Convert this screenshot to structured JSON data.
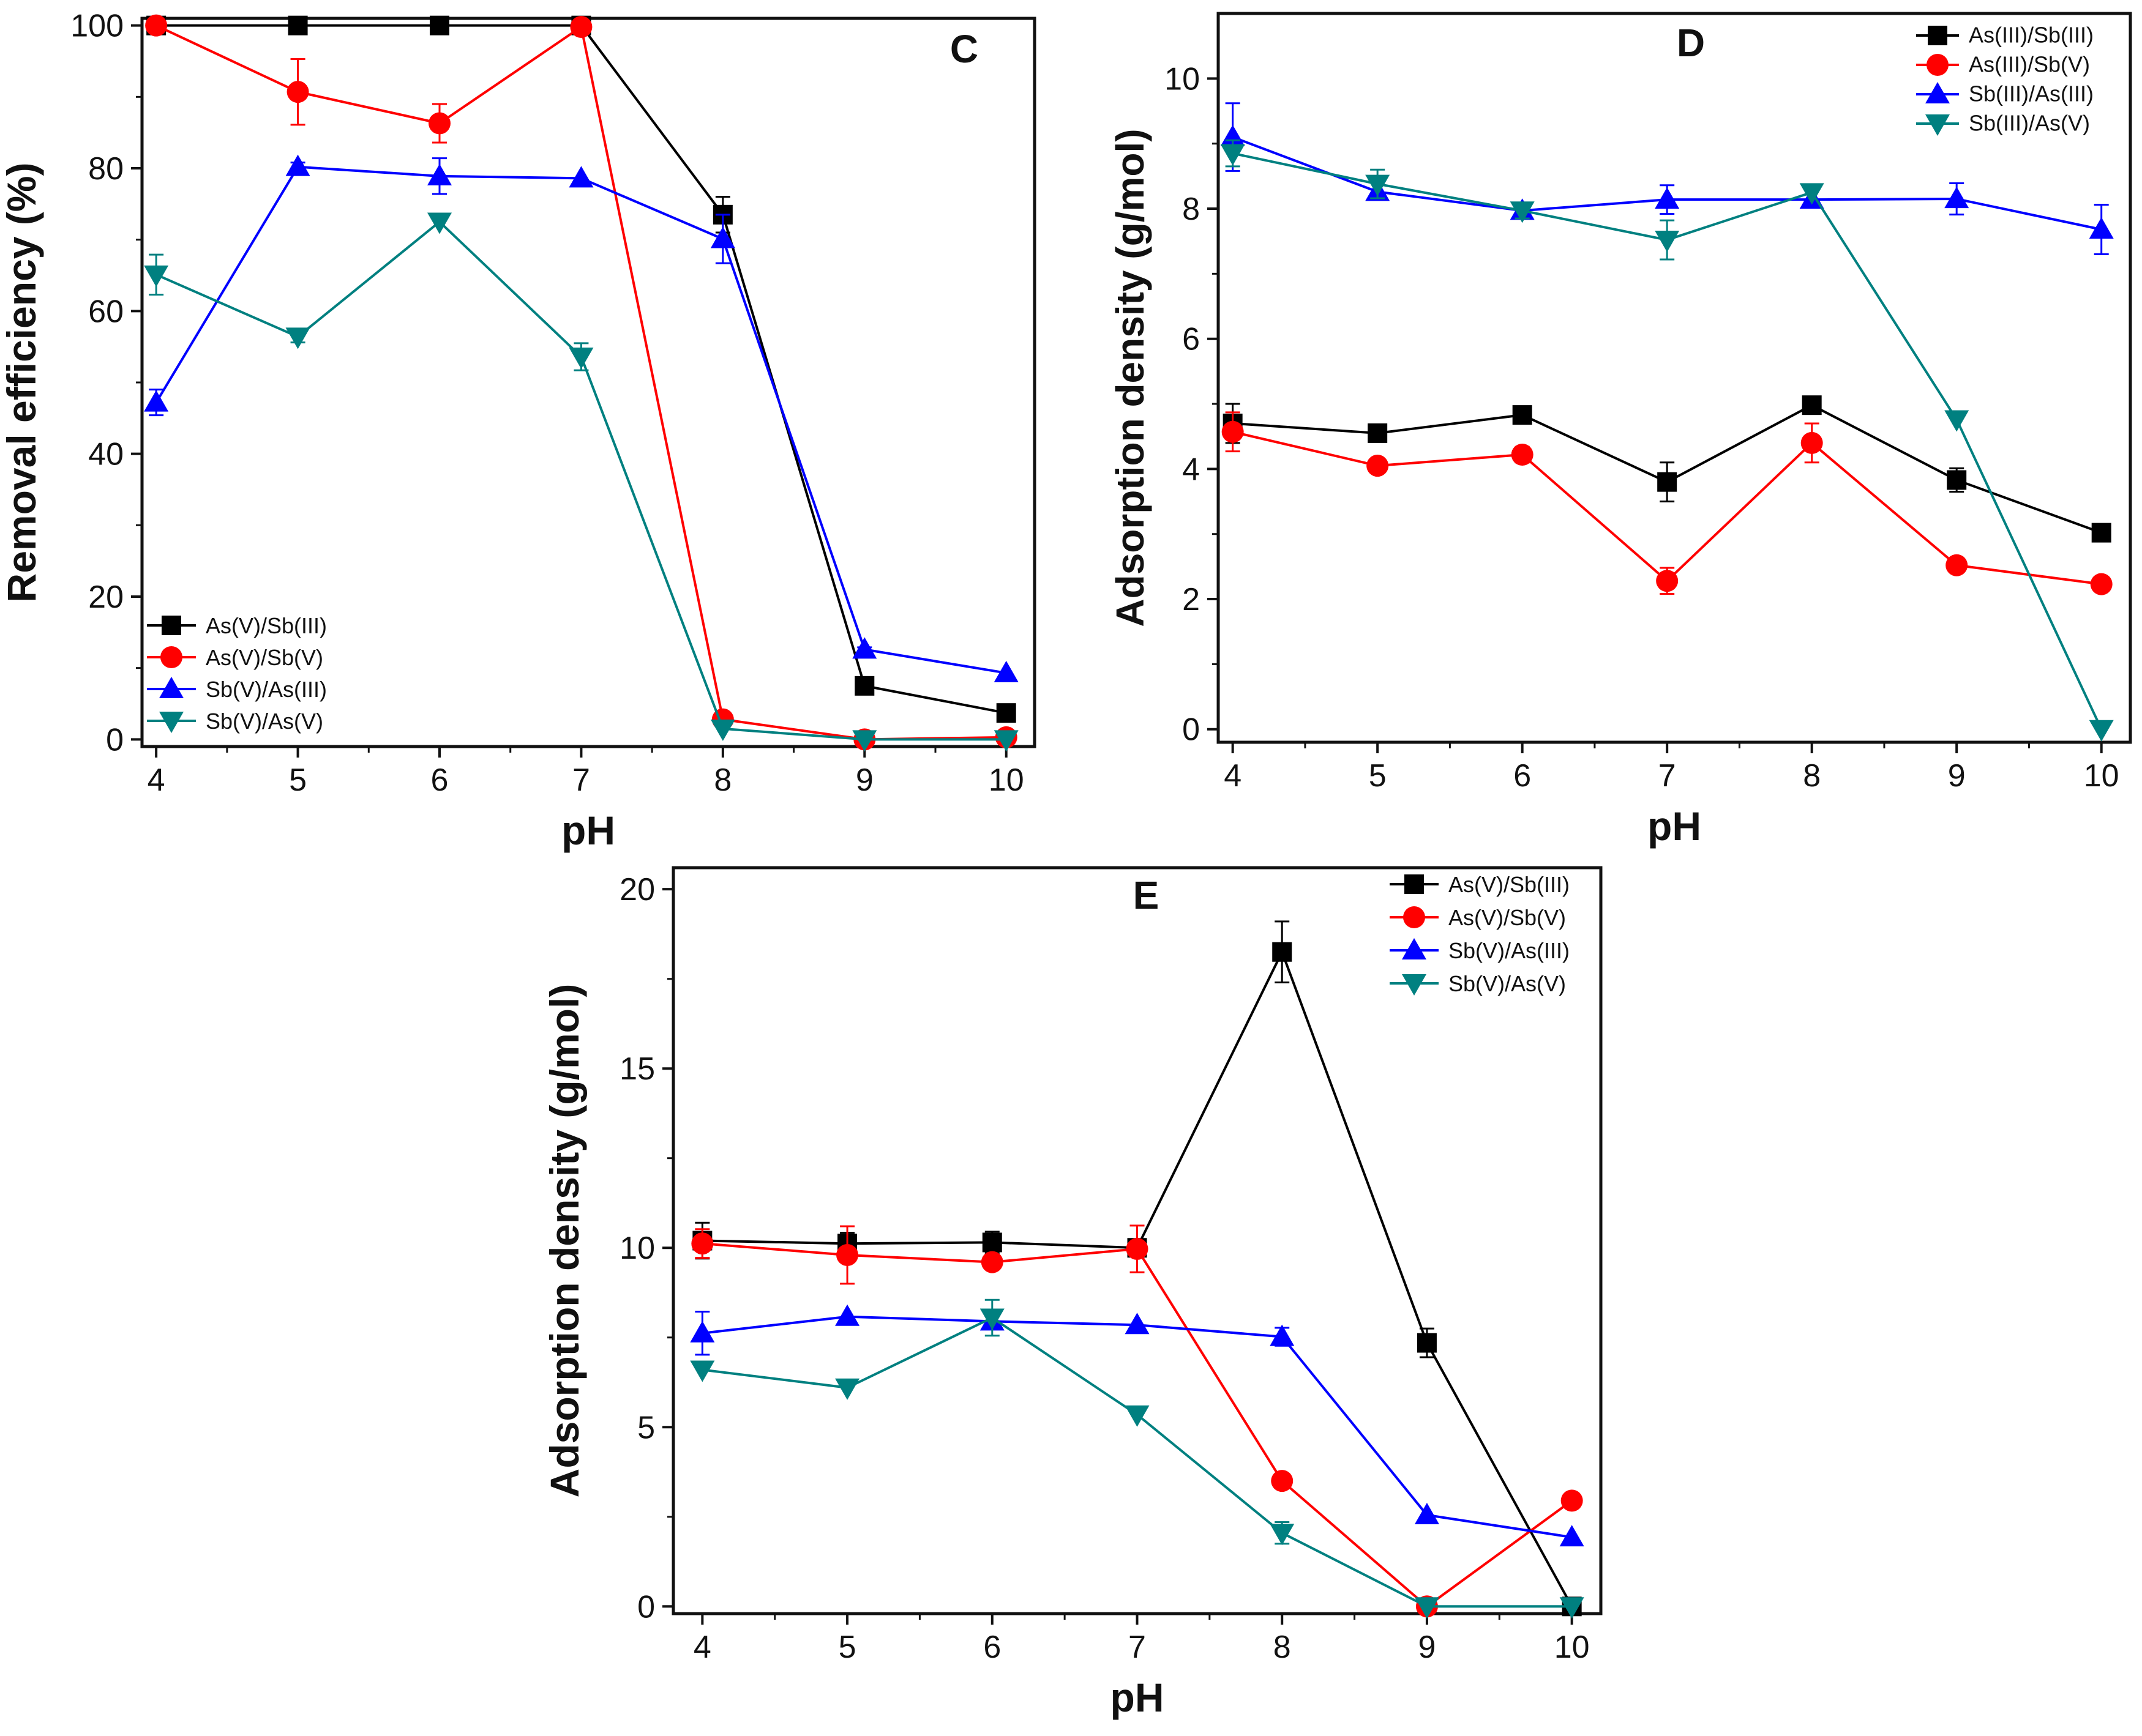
{
  "colors": {
    "black": "#000000",
    "red": "#ff0000",
    "blue": "#0000ff",
    "teal": "#008080",
    "axis": "#111111"
  },
  "chart_data": [
    {
      "type": "line",
      "panel": "C",
      "xlabel": "pH",
      "ylabel": "Removal efficiency (%)",
      "xlim": [
        3.9,
        10.2
      ],
      "ylim": [
        -1,
        101
      ],
      "x": [
        4,
        5,
        6,
        7,
        8,
        9,
        10
      ],
      "xticks": [
        "4",
        "5",
        "6",
        "7",
        "8",
        "9",
        "10"
      ],
      "yticks": [
        0,
        20,
        40,
        60,
        80,
        100
      ],
      "legend_position": "bottom-left",
      "series": [
        {
          "name": "As(V)/Sb(III)",
          "color": "black",
          "marker": "square",
          "values": [
            100,
            100,
            100,
            100,
            73.5,
            7.5,
            3.7
          ],
          "errors": [
            0,
            0,
            0,
            0,
            2.5,
            0.5,
            0.5
          ]
        },
        {
          "name": "As(V)/Sb(V)",
          "color": "red",
          "marker": "circle",
          "values": [
            100,
            90.7,
            86.3,
            99.8,
            2.8,
            0,
            0.3
          ],
          "errors": [
            0,
            4.6,
            2.7,
            0,
            0.5,
            0,
            0
          ]
        },
        {
          "name": "Sb(V)/As(III)",
          "color": "blue",
          "marker": "triangle-up",
          "values": [
            47.2,
            80.2,
            78.9,
            78.6,
            70.1,
            12.6,
            9.3
          ],
          "errors": [
            1.8,
            0.6,
            2.5,
            0,
            3.4,
            0.3,
            0
          ]
        },
        {
          "name": "Sb(V)/As(V)",
          "color": "teal",
          "marker": "triangle-down",
          "values": [
            65.1,
            56.4,
            72.5,
            53.6,
            1.5,
            0,
            0
          ],
          "errors": [
            2.8,
            0.8,
            0,
            1.9,
            0,
            0,
            0
          ]
        }
      ]
    },
    {
      "type": "line",
      "panel": "D",
      "xlabel": "pH",
      "ylabel": "Adsorption density (g/mol)",
      "xlim": [
        3.9,
        10.2
      ],
      "ylim": [
        -0.2,
        11
      ],
      "x": [
        4,
        5,
        6,
        7,
        8,
        9,
        10
      ],
      "xticks": [
        "4",
        "5",
        "6",
        "7",
        "8",
        "9",
        "10"
      ],
      "yticks": [
        0,
        2,
        4,
        6,
        8,
        10
      ],
      "legend_position": "top-right",
      "series": [
        {
          "name": "As(III)/Sb(III)",
          "color": "black",
          "marker": "square",
          "values": [
            4.7,
            4.55,
            4.83,
            3.8,
            4.98,
            3.83,
            3.02
          ],
          "errors": [
            0.3,
            0,
            0,
            0.3,
            0,
            0.18,
            0
          ]
        },
        {
          "name": "As(III)/Sb(V)",
          "color": "red",
          "marker": "circle",
          "values": [
            4.57,
            4.05,
            4.22,
            2.28,
            4.4,
            2.52,
            2.23
          ],
          "errors": [
            0.3,
            0,
            0.12,
            0.2,
            0.3,
            0,
            0
          ]
        },
        {
          "name": "Sb(III)/As(III)",
          "color": "blue",
          "marker": "triangle-up",
          "values": [
            9.1,
            8.26,
            7.97,
            8.14,
            8.14,
            8.15,
            7.68
          ],
          "errors": [
            0.52,
            0,
            0,
            0.22,
            0,
            0.24,
            0.38
          ]
        },
        {
          "name": "Sb(III)/As(V)",
          "color": "teal",
          "marker": "triangle-down",
          "values": [
            8.85,
            8.38,
            7.97,
            7.52,
            8.25,
            4.76,
            0
          ],
          "errors": [
            0.2,
            0.22,
            0.12,
            0.3,
            0,
            0,
            0
          ]
        }
      ]
    },
    {
      "type": "line",
      "panel": "E",
      "xlabel": "pH",
      "ylabel": "Adsorption density (g/mol)",
      "xlim": [
        3.8,
        10.2
      ],
      "ylim": [
        -0.2,
        20.6
      ],
      "x": [
        4,
        5,
        6,
        7,
        8,
        9,
        10
      ],
      "xticks": [
        "4",
        "5",
        "6",
        "7",
        "8",
        "9",
        "10"
      ],
      "yticks": [
        0,
        5,
        10,
        15,
        20
      ],
      "legend_position": "top-right",
      "series": [
        {
          "name": "As(V)/Sb(III)",
          "color": "black",
          "marker": "square",
          "values": [
            10.2,
            10.12,
            10.15,
            10.0,
            18.25,
            7.35,
            0
          ],
          "errors": [
            0.5,
            0.3,
            0.3,
            0,
            0.85,
            0.4,
            0
          ]
        },
        {
          "name": "As(V)/Sb(V)",
          "color": "red",
          "marker": "circle",
          "values": [
            10.12,
            9.8,
            9.6,
            9.97,
            3.5,
            0,
            2.95
          ],
          "errors": [
            0.4,
            0.8,
            0,
            0.65,
            0,
            0,
            0
          ]
        },
        {
          "name": "Sb(V)/As(III)",
          "color": "blue",
          "marker": "triangle-up",
          "values": [
            7.62,
            8.08,
            7.95,
            7.85,
            7.52,
            2.55,
            1.93
          ],
          "errors": [
            0.6,
            0,
            0,
            0,
            0.25,
            0,
            0
          ]
        },
        {
          "name": "Sb(V)/As(V)",
          "color": "teal",
          "marker": "triangle-down",
          "values": [
            6.6,
            6.1,
            8.05,
            5.35,
            2.05,
            0,
            0
          ],
          "errors": [
            0,
            0,
            0.5,
            0,
            0.3,
            0,
            0
          ]
        }
      ]
    }
  ]
}
